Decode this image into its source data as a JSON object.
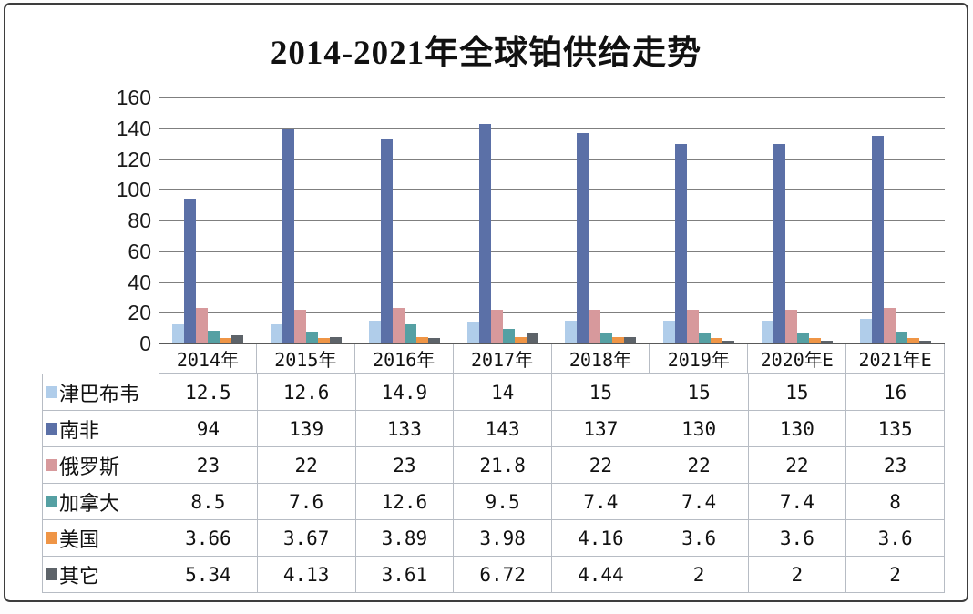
{
  "title": "2014-2021年全球铂供给走势",
  "chart_data": {
    "type": "bar",
    "title": "2014-2021年全球铂供给走势",
    "categories": [
      "2014年",
      "2015年",
      "2016年",
      "2017年",
      "2018年",
      "2019年",
      "2020年E",
      "2021年E"
    ],
    "series": [
      {
        "name": "津巴布韦",
        "color": "#b0cdea",
        "values": [
          12.5,
          12.6,
          14.9,
          14,
          15,
          15,
          15,
          16
        ]
      },
      {
        "name": "南非",
        "color": "#5b70a7",
        "values": [
          94,
          139,
          133,
          143,
          137,
          130,
          130,
          135
        ]
      },
      {
        "name": "俄罗斯",
        "color": "#d7999c",
        "values": [
          23,
          22,
          23,
          21.8,
          22,
          22,
          22,
          23
        ]
      },
      {
        "name": "加拿大",
        "color": "#55a0a3",
        "values": [
          8.5,
          7.6,
          12.6,
          9.5,
          7.4,
          7.4,
          7.4,
          8
        ]
      },
      {
        "name": "美国",
        "color": "#ef9546",
        "values": [
          3.66,
          3.67,
          3.89,
          3.98,
          4.16,
          3.6,
          3.6,
          3.6
        ]
      },
      {
        "name": "其它",
        "color": "#5d6369",
        "values": [
          5.34,
          4.13,
          3.61,
          6.72,
          4.44,
          2,
          2,
          2
        ]
      }
    ],
    "ylim": [
      0,
      160
    ],
    "yticks": [
      0,
      20,
      40,
      60,
      80,
      100,
      120,
      140,
      160
    ],
    "xlabel": "",
    "ylabel": "",
    "grid": true,
    "legend_position": "table-left-column",
    "gridline_color": "#7f7f7f"
  }
}
